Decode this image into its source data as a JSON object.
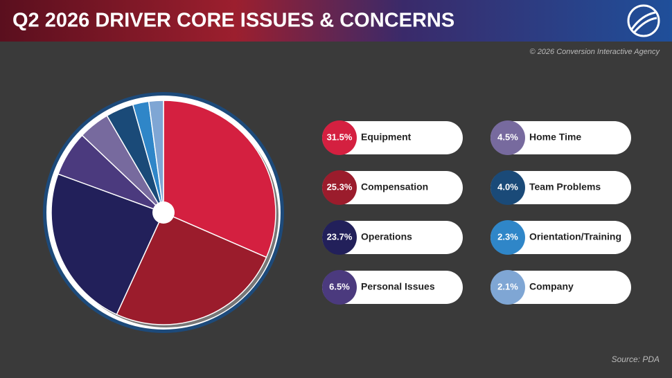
{
  "chart_data": {
    "type": "pie",
    "title": "Q2 2026 DRIVER CORE ISSUES & CONCERNS",
    "subtitle": "© 2026 Conversion Interactive Agency",
    "source": "Source: PDA",
    "categories": [
      "Equipment",
      "Compensation",
      "Operations",
      "Personal Issues",
      "Home Time",
      "Team Problems",
      "Orientation/Training",
      "Company"
    ],
    "values": [
      31.5,
      25.3,
      23.7,
      6.5,
      4.5,
      4.0,
      2.3,
      2.1
    ],
    "value_labels": [
      "31.5%",
      "25.3%",
      "23.7%",
      "6.5%",
      "4.5%",
      "4.0%",
      "2.3%",
      "2.1%"
    ],
    "colors": [
      "#d42040",
      "#9b1c2c",
      "#22205a",
      "#4b3a7e",
      "#776a9e",
      "#1a4a78",
      "#2f86c8",
      "#7fa6d4"
    ],
    "legend": "right"
  }
}
